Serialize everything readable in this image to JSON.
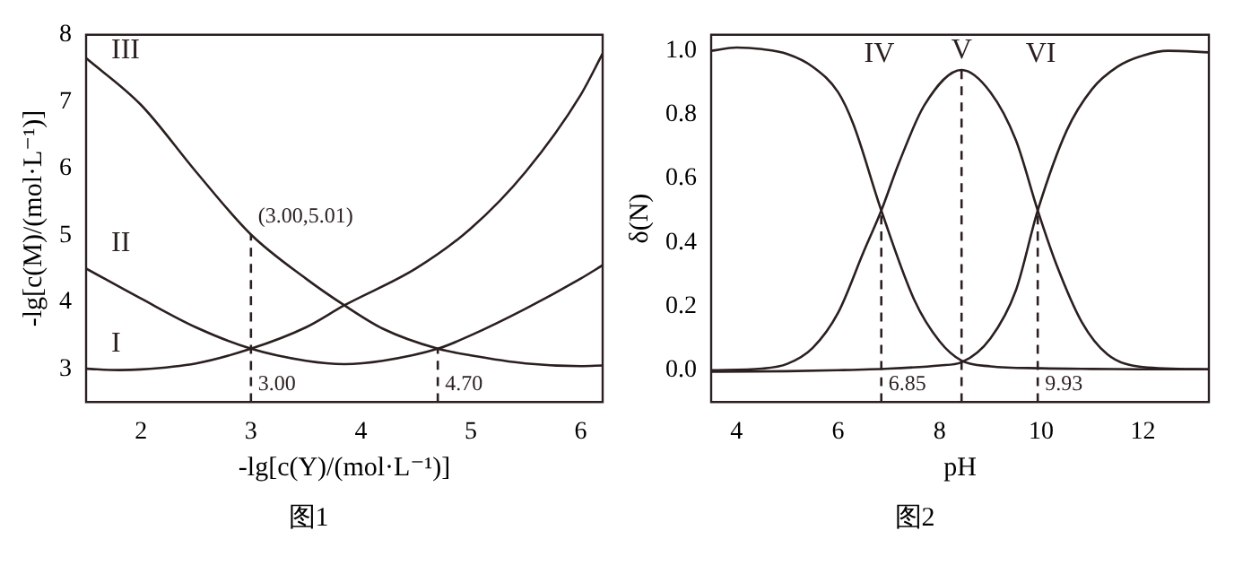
{
  "chart_data": [
    {
      "type": "line",
      "title": "图1",
      "xlabel": "-lg[c(Y)/(mol·L⁻¹)]",
      "ylabel": "-lg[c(M)/(mol·L⁻¹)]",
      "xlim": [
        1.5,
        6.2
      ],
      "xticks": [
        2,
        3,
        4,
        5,
        6
      ],
      "ylim": [
        2.5,
        8
      ],
      "yticks": [
        3,
        4,
        5,
        6,
        7,
        8
      ],
      "grid": false,
      "legend": false,
      "marker": "none",
      "line_style": "solid",
      "series": [
        {
          "name": "III",
          "color": "#2b1f1f",
          "x": [
            1.5,
            2,
            2.5,
            3,
            3.5,
            3.85,
            4.2,
            4.7,
            5,
            5.5,
            6,
            6.2
          ],
          "values": [
            7.65,
            6.95,
            5.95,
            5.01,
            4.35,
            3.95,
            3.6,
            3.3,
            3.2,
            3.08,
            3.04,
            3.05
          ]
        },
        {
          "name": "II",
          "color": "#2b1f1f",
          "x": [
            1.5,
            2,
            2.5,
            3,
            3.5,
            3.85,
            4.2,
            4.7,
            5,
            5.5,
            6,
            6.2
          ],
          "values": [
            4.5,
            4.05,
            3.62,
            3.3,
            3.12,
            3.07,
            3.12,
            3.3,
            3.5,
            3.9,
            4.35,
            4.55
          ]
        },
        {
          "name": "I",
          "color": "#2b1f1f",
          "x": [
            1.5,
            1.8,
            2,
            2.5,
            3,
            3.5,
            3.85,
            4.5,
            5,
            5.5,
            6,
            6.2
          ],
          "values": [
            3.0,
            2.98,
            2.99,
            3.08,
            3.3,
            3.62,
            3.95,
            4.5,
            5.1,
            5.95,
            7.1,
            7.72
          ]
        },
        {
          "color": "#2b1f1f",
          "line_style": "dashed",
          "x": [
            3,
            3
          ],
          "values": [
            2.5,
            5.01
          ]
        },
        {
          "color": "#2b1f1f",
          "line_style": "dashed",
          "x": [
            4.7,
            4.7
          ],
          "values": [
            2.5,
            3.3
          ]
        }
      ],
      "annotations": [
        {
          "text": "(3.00,5.01)",
          "x": 3,
          "y": 5.01
        },
        {
          "text": "3.00",
          "x": 3,
          "y": 2.5
        },
        {
          "text": "4.70",
          "x": 4.7,
          "y": 2.5
        }
      ]
    },
    {
      "type": "line",
      "title": "图2",
      "xlabel": "pH",
      "ylabel": "δ(N)",
      "xlim": [
        3.5,
        13.3
      ],
      "xticks": [
        4,
        6,
        8,
        10,
        12
      ],
      "ylim": [
        -0.1,
        1.05
      ],
      "yticks": [
        {
          "value": 0,
          "label": "0.0"
        },
        {
          "value": 0.2,
          "label": "0.2"
        },
        {
          "value": 0.4,
          "label": "0.4"
        },
        {
          "value": 0.6,
          "label": "0.6"
        },
        {
          "value": 0.8,
          "label": "0.8"
        },
        {
          "value": 1,
          "label": "1.0"
        }
      ],
      "grid": false,
      "legend": false,
      "marker": "none",
      "line_style": "solid",
      "series": [
        {
          "name": "IV",
          "color": "#2b1f1f",
          "x": [
            3.5,
            4,
            4.5,
            5,
            5.5,
            6,
            6.3,
            6.85,
            7.5,
            8,
            8.43,
            9,
            10,
            11,
            12,
            13.3
          ],
          "values": [
            1.0,
            1.01,
            1.005,
            0.99,
            0.95,
            0.87,
            0.77,
            0.5,
            0.22,
            0.09,
            0.03,
            0.012,
            0.006,
            0.004,
            0.003,
            0.003
          ]
        },
        {
          "name": "V",
          "color": "#2b1f1f",
          "x": [
            3.5,
            4.5,
            5,
            5.5,
            6,
            6.5,
            6.85,
            7.2,
            7.7,
            8.43,
            9,
            9.5,
            9.93,
            10.3,
            10.8,
            11.3,
            12,
            13.3
          ],
          "values": [
            0,
            0.005,
            0.02,
            0.07,
            0.18,
            0.37,
            0.5,
            0.65,
            0.83,
            0.94,
            0.87,
            0.72,
            0.5,
            0.33,
            0.15,
            0.05,
            0.01,
            0.003
          ]
        },
        {
          "name": "VI",
          "color": "#2b1f1f",
          "x": [
            3.5,
            5,
            6,
            7,
            8,
            8.43,
            9,
            9.5,
            9.93,
            10.5,
            11,
            11.5,
            12,
            12.5,
            13.3
          ],
          "values": [
            -0.005,
            -0.003,
            0,
            0.005,
            0.015,
            0.025,
            0.1,
            0.25,
            0.5,
            0.75,
            0.88,
            0.95,
            0.985,
            1.0,
            0.995
          ]
        },
        {
          "color": "#2b1f1f",
          "line_style": "dashed",
          "x": [
            6.85,
            6.85
          ],
          "values": [
            -0.1,
            0.5
          ]
        },
        {
          "color": "#2b1f1f",
          "line_style": "dashed",
          "x": [
            8.43,
            8.43
          ],
          "values": [
            -0.1,
            0.94
          ]
        },
        {
          "color": "#2b1f1f",
          "line_style": "dashed",
          "x": [
            9.93,
            9.93
          ],
          "values": [
            -0.1,
            0.5
          ]
        }
      ],
      "annotations": [
        {
          "text": "6.85",
          "x": 6.85,
          "y": -0.1
        },
        {
          "text": "9.93",
          "x": 9.93,
          "y": -0.1
        }
      ]
    }
  ]
}
